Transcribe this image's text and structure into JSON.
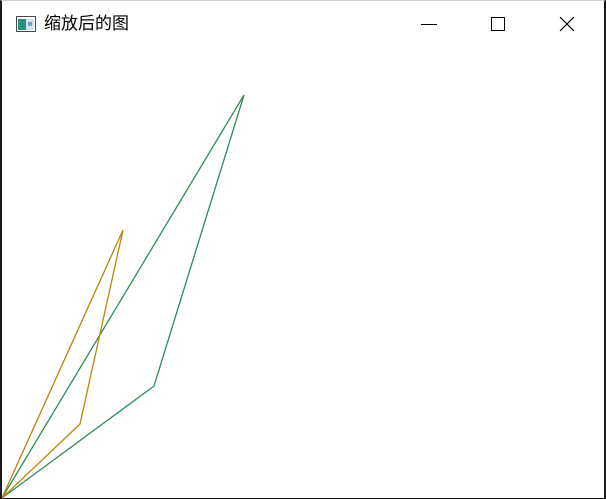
{
  "window": {
    "title": "缩放后的图"
  },
  "title_icon": "app-window-icon",
  "caption_buttons": [
    "minimize-icon",
    "maximize-icon",
    "close-icon"
  ],
  "colors": {
    "original_shape": "#2e8b57",
    "scaled_shape": "#b8860b"
  }
}
